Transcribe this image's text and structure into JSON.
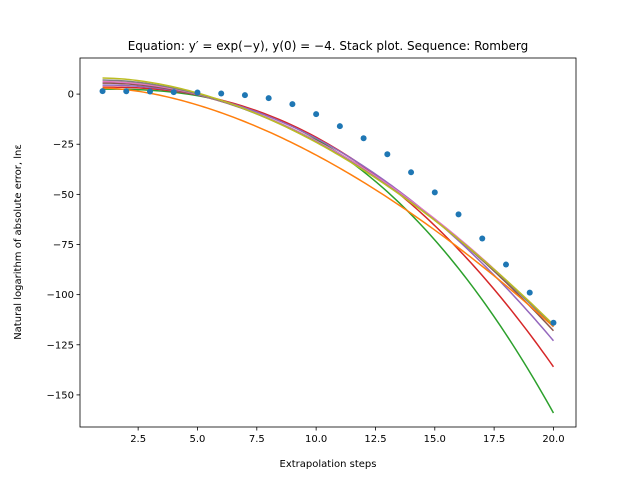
{
  "chart_data": {
    "type": "line",
    "title": "Equation: y′ = exp(−y), y(0) = −4. Stack plot. Sequence: Romberg",
    "xlabel": "Extrapolation steps",
    "ylabel": "Natural logarithm of absolute error, lnε",
    "xlim": [
      0.05,
      20.95
    ],
    "ylim": [
      -166,
      18
    ],
    "xticks": [
      2.5,
      5.0,
      7.5,
      10.0,
      12.5,
      15.0,
      17.5,
      20.0
    ],
    "xtick_labels": [
      "2.5",
      "5.0",
      "7.5",
      "10.0",
      "12.5",
      "15.0",
      "17.5",
      "20.0"
    ],
    "yticks": [
      0,
      -25,
      -50,
      -75,
      -100,
      -125,
      -150
    ],
    "ytick_labels": [
      "0",
      "−25",
      "−50",
      "−75",
      "−100",
      "−125",
      "−150"
    ],
    "grid": false,
    "markers": {
      "color": "#1f77b4",
      "x": [
        1,
        2,
        3,
        4,
        5,
        6,
        7,
        8,
        9,
        10,
        11,
        12,
        13,
        14,
        15,
        16,
        17,
        18,
        19,
        20
      ],
      "y": [
        1.5,
        1.4,
        1.3,
        1.0,
        0.8,
        0.3,
        -0.5,
        -2.0,
        -5.0,
        -10.0,
        -16.0,
        -22.0,
        -30.0,
        -39.0,
        -49.0,
        -60.0,
        -72.0,
        -85.0,
        -99.0,
        -114.0
      ]
    },
    "series": [
      {
        "color": "#2ca02c",
        "x": [
          1,
          20
        ],
        "y": [
          2.5,
          -159
        ],
        "k": 2.5
      },
      {
        "color": "#d62728",
        "x": [
          1,
          20
        ],
        "y": [
          3.5,
          -136
        ],
        "k": 2.3
      },
      {
        "color": "#9467bd",
        "x": [
          1,
          20
        ],
        "y": [
          4.5,
          -123
        ],
        "k": 2.1
      },
      {
        "color": "#8c564b",
        "x": [
          1,
          20
        ],
        "y": [
          5.5,
          -118
        ],
        "k": 1.95
      },
      {
        "color": "#e377c2",
        "x": [
          1,
          20
        ],
        "y": [
          6.2,
          -116
        ],
        "k": 1.9
      },
      {
        "color": "#7f7f7f",
        "x": [
          1,
          20
        ],
        "y": [
          7.0,
          -116
        ],
        "k": 1.85
      },
      {
        "color": "#bcbd22",
        "x": [
          1,
          20
        ],
        "y": [
          8.0,
          -115
        ],
        "k": 1.8
      },
      {
        "color": "#ff7f0e",
        "x": [
          1,
          20
        ],
        "y": [
          3.0,
          -116
        ],
        "k": 1.7
      }
    ]
  }
}
